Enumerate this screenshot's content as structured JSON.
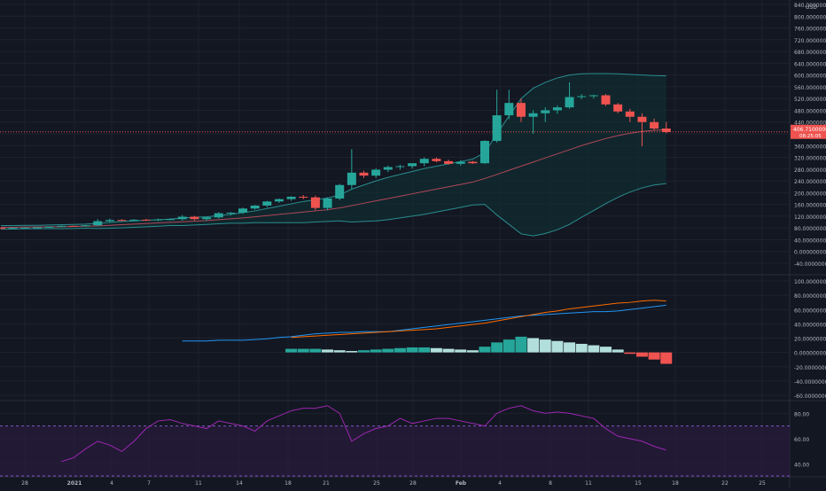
{
  "colors": {
    "background": "#131722",
    "grid": "#1e222d",
    "up": "#26a69a",
    "down": "#ef5350",
    "bb_fill": "#0f2d30",
    "bb_line": "#2a8d8f",
    "basis": "#b2475a",
    "macd_line": "#2196f3",
    "signal_line": "#ff6d00",
    "hist_up_strong": "#26a69a",
    "hist_up_weak": "#b2dfdb",
    "hist_down_strong": "#ef5350",
    "hist_down_weak": "#ffcdd2",
    "rsi_line": "#9c27b0",
    "rsi_band": "#2a1b3d",
    "text": "#b2b5be",
    "price_line": "#ef5350"
  },
  "price_axis": {
    "unit": "USD",
    "top_label": "840.00000000"
  },
  "current_price": {
    "value": "406.71000000",
    "countdown": "08:25:05"
  },
  "x_axis_labels": [
    "28",
    "2021",
    "4",
    "7",
    "11",
    "14",
    "18",
    "21",
    "25",
    "28",
    "Feb",
    "4",
    "8",
    "11",
    "15",
    "18",
    "22",
    "25"
  ],
  "chart_data": [
    {
      "type": "candlestick",
      "panel": "price",
      "ylim": [
        -40,
        840
      ],
      "yticks": [
        -40,
        0,
        40,
        80,
        120,
        160,
        200,
        240,
        280,
        320,
        360,
        400,
        440,
        480,
        520,
        560,
        600,
        640,
        680,
        720,
        760,
        800,
        840
      ],
      "candles": [
        {
          "o": 80,
          "h": 81,
          "l": 78,
          "c": 79
        },
        {
          "o": 79,
          "h": 81,
          "l": 78,
          "c": 80
        },
        {
          "o": 80,
          "h": 82,
          "l": 79,
          "c": 81
        },
        {
          "o": 81,
          "h": 82,
          "l": 80,
          "c": 82
        },
        {
          "o": 82,
          "h": 84,
          "l": 81,
          "c": 84
        },
        {
          "o": 84,
          "h": 88,
          "l": 83,
          "c": 87
        },
        {
          "o": 87,
          "h": 88,
          "l": 85,
          "c": 86
        },
        {
          "o": 86,
          "h": 90,
          "l": 85,
          "c": 89
        },
        {
          "o": 89,
          "h": 110,
          "l": 86,
          "c": 103
        },
        {
          "o": 103,
          "h": 112,
          "l": 98,
          "c": 107
        },
        {
          "o": 107,
          "h": 110,
          "l": 104,
          "c": 106
        },
        {
          "o": 106,
          "h": 110,
          "l": 104,
          "c": 108
        },
        {
          "o": 108,
          "h": 111,
          "l": 104,
          "c": 106
        },
        {
          "o": 106,
          "h": 112,
          "l": 104,
          "c": 109
        },
        {
          "o": 109,
          "h": 113,
          "l": 106,
          "c": 110
        },
        {
          "o": 110,
          "h": 124,
          "l": 105,
          "c": 118
        },
        {
          "o": 118,
          "h": 121,
          "l": 106,
          "c": 110
        },
        {
          "o": 110,
          "h": 118,
          "l": 104,
          "c": 116
        },
        {
          "o": 116,
          "h": 134,
          "l": 112,
          "c": 130
        },
        {
          "o": 130,
          "h": 134,
          "l": 122,
          "c": 132
        },
        {
          "o": 132,
          "h": 149,
          "l": 128,
          "c": 146
        },
        {
          "o": 146,
          "h": 158,
          "l": 142,
          "c": 156
        },
        {
          "o": 156,
          "h": 172,
          "l": 150,
          "c": 170
        },
        {
          "o": 170,
          "h": 180,
          "l": 165,
          "c": 178
        },
        {
          "o": 178,
          "h": 188,
          "l": 172,
          "c": 186
        },
        {
          "o": 186,
          "h": 192,
          "l": 178,
          "c": 184
        },
        {
          "o": 184,
          "h": 190,
          "l": 140,
          "c": 148
        },
        {
          "o": 148,
          "h": 184,
          "l": 140,
          "c": 180
        },
        {
          "o": 180,
          "h": 230,
          "l": 174,
          "c": 226
        },
        {
          "o": 226,
          "h": 348,
          "l": 210,
          "c": 268
        },
        {
          "o": 268,
          "h": 275,
          "l": 250,
          "c": 258
        },
        {
          "o": 258,
          "h": 283,
          "l": 250,
          "c": 278
        },
        {
          "o": 278,
          "h": 292,
          "l": 270,
          "c": 287
        },
        {
          "o": 287,
          "h": 295,
          "l": 278,
          "c": 290
        },
        {
          "o": 290,
          "h": 298,
          "l": 282,
          "c": 300
        },
        {
          "o": 300,
          "h": 320,
          "l": 290,
          "c": 315
        },
        {
          "o": 315,
          "h": 320,
          "l": 303,
          "c": 307
        },
        {
          "o": 307,
          "h": 312,
          "l": 295,
          "c": 298
        },
        {
          "o": 298,
          "h": 310,
          "l": 292,
          "c": 305
        },
        {
          "o": 305,
          "h": 308,
          "l": 298,
          "c": 300
        },
        {
          "o": 300,
          "h": 378,
          "l": 298,
          "c": 376
        },
        {
          "o": 376,
          "h": 550,
          "l": 370,
          "c": 463
        },
        {
          "o": 463,
          "h": 550,
          "l": 450,
          "c": 505
        },
        {
          "o": 505,
          "h": 520,
          "l": 440,
          "c": 458
        },
        {
          "o": 458,
          "h": 480,
          "l": 400,
          "c": 470
        },
        {
          "o": 470,
          "h": 490,
          "l": 440,
          "c": 480
        },
        {
          "o": 480,
          "h": 497,
          "l": 468,
          "c": 490
        },
        {
          "o": 490,
          "h": 575,
          "l": 485,
          "c": 525
        },
        {
          "o": 525,
          "h": 535,
          "l": 518,
          "c": 528
        },
        {
          "o": 528,
          "h": 533,
          "l": 520,
          "c": 531
        },
        {
          "o": 531,
          "h": 535,
          "l": 495,
          "c": 500
        },
        {
          "o": 500,
          "h": 505,
          "l": 470,
          "c": 476
        },
        {
          "o": 476,
          "h": 485,
          "l": 440,
          "c": 458
        },
        {
          "o": 458,
          "h": 470,
          "l": 358,
          "c": 440
        },
        {
          "o": 440,
          "h": 452,
          "l": 412,
          "c": 418
        },
        {
          "o": 418,
          "h": 440,
          "l": 402,
          "c": 406
        }
      ],
      "bollinger": {
        "upper": [
          88,
          88,
          89,
          89,
          90,
          91,
          92,
          93,
          96,
          99,
          102,
          104,
          106,
          108,
          110,
          114,
          116,
          118,
          122,
          126,
          132,
          138,
          146,
          154,
          162,
          170,
          176,
          182,
          192,
          212,
          226,
          240,
          252,
          262,
          272,
          282,
          290,
          298,
          306,
          314,
          336,
          400,
          460,
          520,
          555,
          575,
          590,
          600,
          604,
          605,
          605,
          604,
          602,
          600,
          598,
          597
        ],
        "basis": [
          82,
          82,
          83,
          83,
          84,
          84,
          85,
          86,
          87,
          89,
          91,
          93,
          95,
          97,
          99,
          101,
          103,
          105,
          108,
          111,
          114,
          118,
          122,
          126,
          130,
          134,
          138,
          142,
          148,
          156,
          164,
          172,
          180,
          188,
          196,
          204,
          212,
          220,
          228,
          236,
          248,
          262,
          276,
          290,
          304,
          318,
          332,
          346,
          360,
          372,
          384,
          394,
          402,
          408,
          412,
          414
        ],
        "lower": [
          76,
          76,
          77,
          77,
          78,
          77,
          78,
          79,
          78,
          79,
          80,
          82,
          84,
          86,
          88,
          88,
          90,
          92,
          94,
          96,
          96,
          98,
          98,
          98,
          98,
          98,
          100,
          102,
          104,
          100,
          102,
          104,
          108,
          114,
          120,
          126,
          134,
          142,
          150,
          158,
          160,
          124,
          92,
          60,
          53,
          61,
          74,
          92,
          116,
          139,
          163,
          184,
          202,
          216,
          226,
          231
        ]
      }
    },
    {
      "type": "macd",
      "panel": "macd",
      "ylim": [
        -60,
        100
      ],
      "yticks": [
        -60,
        -40,
        -20,
        0,
        20,
        40,
        60,
        80,
        100
      ],
      "macd_start": 15,
      "signal_start": 24,
      "hist_start": 24,
      "macd": [
        null,
        null,
        null,
        null,
        null,
        null,
        null,
        null,
        null,
        null,
        null,
        null,
        null,
        null,
        null,
        16,
        16,
        16,
        17,
        17,
        17,
        18,
        19,
        21,
        22,
        24,
        26,
        27,
        28,
        28,
        29,
        29,
        29,
        31,
        33,
        35,
        37,
        39,
        41,
        43,
        45,
        47,
        49,
        51,
        52,
        53,
        54,
        55,
        56,
        57,
        57,
        58,
        60,
        62,
        64,
        66
      ],
      "signal": [
        null,
        null,
        null,
        null,
        null,
        null,
        null,
        null,
        null,
        null,
        null,
        null,
        null,
        null,
        null,
        null,
        null,
        null,
        null,
        null,
        null,
        null,
        null,
        null,
        21,
        22,
        23,
        24,
        25,
        26,
        27,
        28,
        29,
        30,
        31,
        32,
        33,
        35,
        37,
        39,
        41,
        44,
        47,
        50,
        53,
        56,
        58,
        61,
        63,
        65,
        67,
        69,
        70,
        72,
        73,
        72
      ],
      "histogram": [
        null,
        null,
        null,
        null,
        null,
        null,
        null,
        null,
        null,
        null,
        null,
        null,
        null,
        null,
        null,
        null,
        null,
        null,
        null,
        null,
        null,
        null,
        null,
        null,
        5,
        5,
        5,
        4,
        3,
        2,
        3,
        4,
        5,
        6,
        7,
        7,
        6,
        5,
        4,
        3,
        8,
        14,
        18,
        22,
        20,
        18,
        16,
        14,
        12,
        10,
        8,
        4,
        -2,
        -6,
        -10,
        -16
      ]
    },
    {
      "type": "line",
      "panel": "rsi",
      "ylim": [
        30,
        90
      ],
      "yticks": [
        40,
        60,
        80
      ],
      "band": [
        30,
        70
      ],
      "rsi_start": 5,
      "rsi": [
        null,
        null,
        null,
        null,
        null,
        42,
        45,
        52,
        58,
        55,
        50,
        58,
        68,
        74,
        75,
        72,
        70,
        68,
        74,
        72,
        70,
        66,
        74,
        78,
        82,
        84,
        84,
        86,
        80,
        58,
        64,
        68,
        70,
        76,
        72,
        74,
        76,
        76,
        74,
        72,
        70,
        80,
        84,
        86,
        82,
        80,
        81,
        80,
        78,
        76,
        68,
        62,
        60,
        58,
        54,
        51
      ]
    }
  ]
}
